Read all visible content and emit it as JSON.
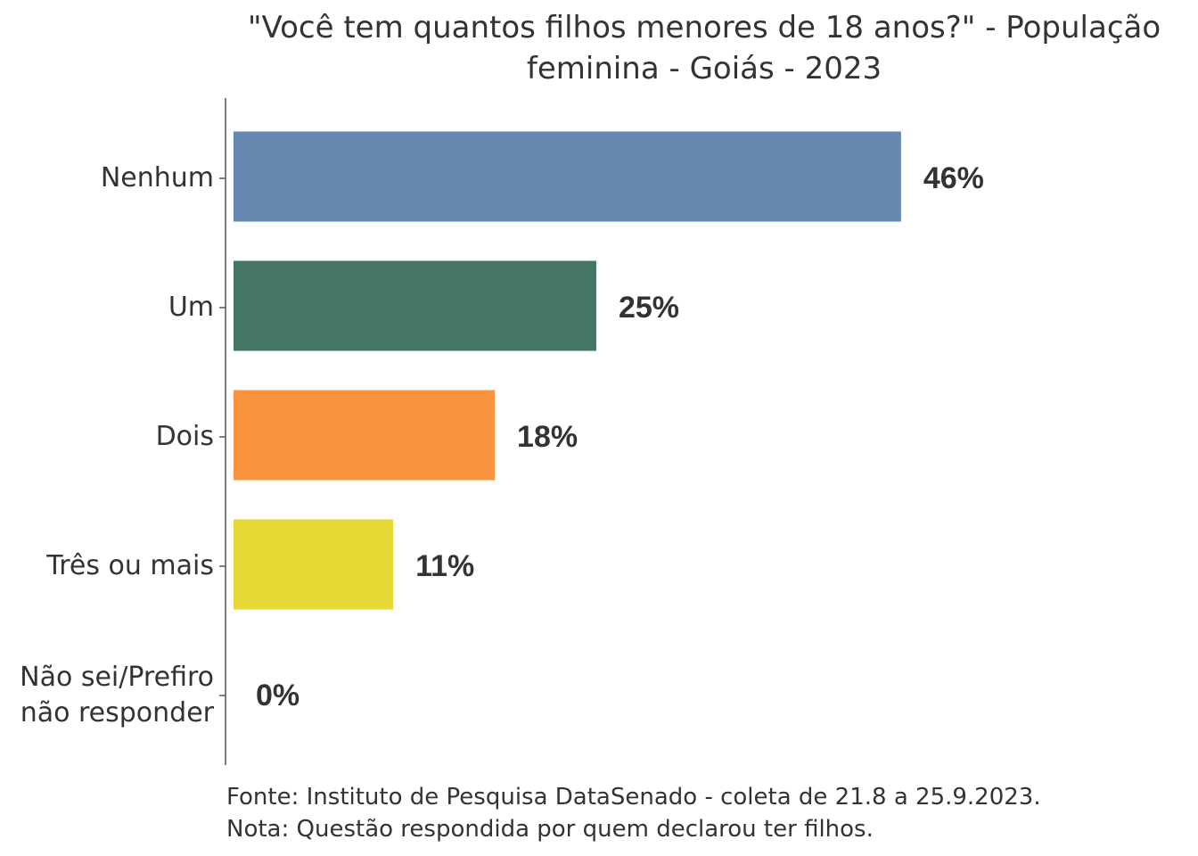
{
  "chart_data": {
    "type": "bar",
    "orientation": "horizontal",
    "title_lines": [
      "\"Você tem quantos filhos menores de 18 anos?\" - População",
      "feminina - Goiás - 2023"
    ],
    "categories": [
      [
        "Nenhum"
      ],
      [
        "Um"
      ],
      [
        "Dois"
      ],
      [
        "Três ou mais"
      ],
      [
        "Não sei/Prefiro",
        "não responder"
      ]
    ],
    "values": [
      46,
      25,
      18,
      11,
      0
    ],
    "value_labels": [
      "46%",
      "25%",
      "18%",
      "11%",
      "0%"
    ],
    "colors": [
      "#6688b0",
      "#457563",
      "#f9933d",
      "#e5d835",
      "#cccccc"
    ],
    "xlim": [
      0,
      50
    ],
    "grid": false
  },
  "footer": {
    "source": "Fonte: Instituto de Pesquisa DataSenado - coleta de 21.8 a 25.9.2023.",
    "note": "Nota: Questão respondida por quem declarou ter filhos."
  }
}
